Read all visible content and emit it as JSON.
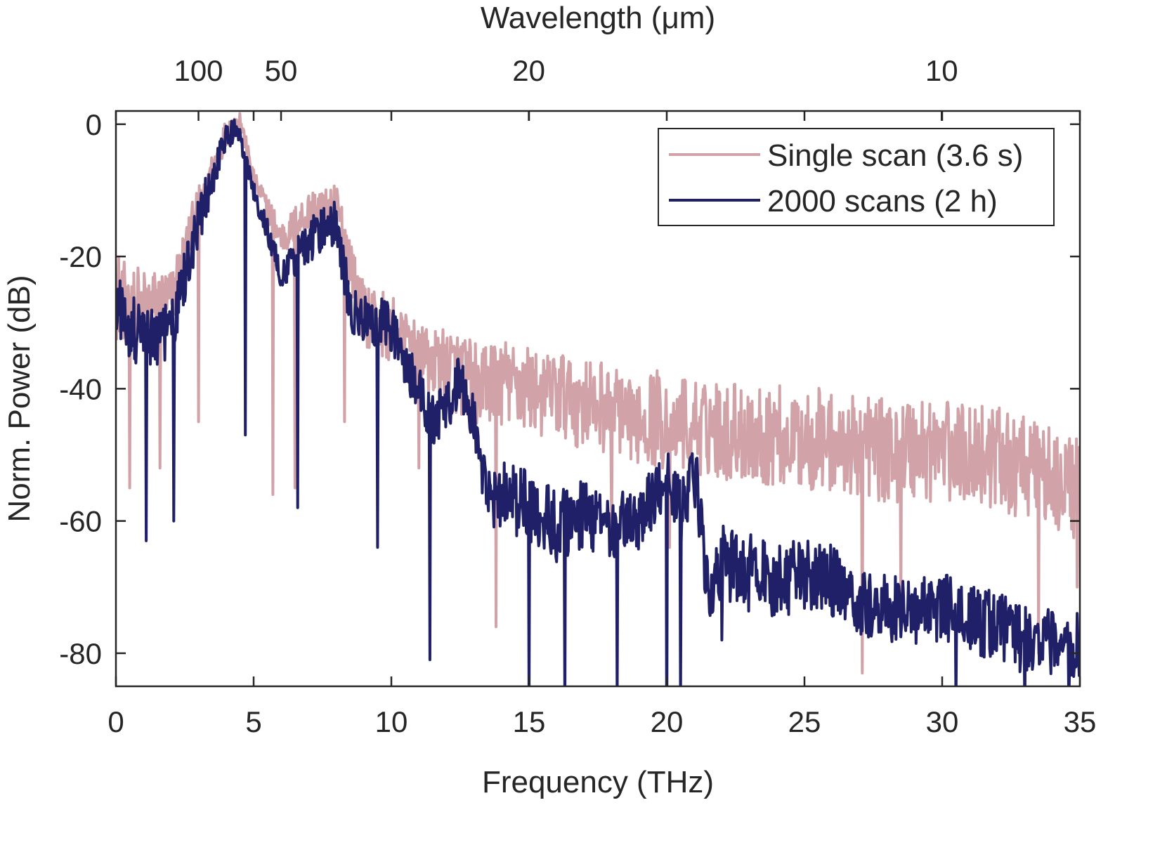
{
  "chart_data": {
    "type": "line",
    "xlabel": "Frequency (THz)",
    "ylabel": "Norm. Power (dB)",
    "top_xlabel": "Wavelength (μm)",
    "xlim": [
      0,
      35
    ],
    "ylim": [
      -85,
      2
    ],
    "x_ticks": [
      0,
      5,
      10,
      15,
      20,
      25,
      30,
      35
    ],
    "x_tick_labels": [
      "0",
      "5",
      "10",
      "15",
      "20",
      "25",
      "30",
      "35"
    ],
    "y_ticks": [
      0,
      -20,
      -40,
      -60,
      -80
    ],
    "y_tick_labels": [
      "0",
      "-20",
      "-40",
      "-60",
      "-80"
    ],
    "top_ticks": [
      {
        "label": "100",
        "frequency_thz": 2.998
      },
      {
        "label": "50",
        "frequency_thz": 5.996
      },
      {
        "label": "20",
        "frequency_thz": 14.99
      },
      {
        "label": "10",
        "frequency_thz": 29.98
      }
    ],
    "legend_position": "top-right",
    "grid": false,
    "series": [
      {
        "name": "Single scan (3.6 s)",
        "color": "#d1a3a8",
        "envelope": [
          [
            0,
            -25
          ],
          [
            1,
            -27
          ],
          [
            2,
            -26
          ],
          [
            3,
            -12
          ],
          [
            4,
            -1
          ],
          [
            4.5,
            1
          ],
          [
            5,
            -8
          ],
          [
            6,
            -17
          ],
          [
            7,
            -13
          ],
          [
            8,
            -12
          ],
          [
            9,
            -28
          ],
          [
            10,
            -30
          ],
          [
            11,
            -34
          ],
          [
            12,
            -36
          ],
          [
            13,
            -38
          ],
          [
            14,
            -38
          ],
          [
            16,
            -40
          ],
          [
            18,
            -42
          ],
          [
            20,
            -44
          ],
          [
            22,
            -45
          ],
          [
            24,
            -46
          ],
          [
            26,
            -47
          ],
          [
            28,
            -48
          ],
          [
            30,
            -48
          ],
          [
            32,
            -49
          ],
          [
            35,
            -54
          ]
        ],
        "noise_amplitude": [
          [
            0,
            10
          ],
          [
            3,
            5
          ],
          [
            4.5,
            2
          ],
          [
            7,
            5
          ],
          [
            10,
            8
          ],
          [
            14,
            10
          ],
          [
            20,
            11
          ],
          [
            28,
            12
          ],
          [
            35,
            12
          ]
        ],
        "dips": [
          [
            0.5,
            -55
          ],
          [
            1.6,
            -52
          ],
          [
            3.0,
            -45
          ],
          [
            5.7,
            -56
          ],
          [
            6.5,
            -55
          ],
          [
            8.3,
            -45
          ],
          [
            11.0,
            -52
          ],
          [
            13.8,
            -76
          ],
          [
            18.0,
            -62
          ],
          [
            20.1,
            -64
          ],
          [
            27.1,
            -83
          ],
          [
            28.5,
            -73
          ],
          [
            33.5,
            -80
          ],
          [
            34.9,
            -70
          ]
        ]
      },
      {
        "name": "2000 scans (2 h)",
        "color": "#1f2068",
        "envelope": [
          [
            0,
            -27
          ],
          [
            1,
            -32
          ],
          [
            2,
            -30
          ],
          [
            3,
            -14
          ],
          [
            4,
            -2
          ],
          [
            4.4,
            0
          ],
          [
            5,
            -10
          ],
          [
            6,
            -22
          ],
          [
            7,
            -17
          ],
          [
            8,
            -14
          ],
          [
            8.5,
            -27
          ],
          [
            9,
            -29
          ],
          [
            10,
            -30
          ],
          [
            10.5,
            -35
          ],
          [
            11.5,
            -44
          ],
          [
            12,
            -42
          ],
          [
            12.5,
            -38
          ],
          [
            13,
            -44
          ],
          [
            13.5,
            -56
          ],
          [
            14,
            -55
          ],
          [
            15,
            -57
          ],
          [
            16,
            -60
          ],
          [
            17,
            -58
          ],
          [
            18,
            -60
          ],
          [
            19,
            -59
          ],
          [
            20,
            -52
          ],
          [
            20.5,
            -58
          ],
          [
            21,
            -51
          ],
          [
            21.5,
            -70
          ],
          [
            22,
            -65
          ],
          [
            23,
            -67
          ],
          [
            24,
            -68
          ],
          [
            25,
            -67
          ],
          [
            26,
            -68
          ],
          [
            27,
            -71
          ],
          [
            28,
            -72
          ],
          [
            29,
            -73
          ],
          [
            30,
            -72
          ],
          [
            31,
            -74
          ],
          [
            32,
            -75
          ],
          [
            33,
            -77
          ],
          [
            35,
            -78
          ]
        ],
        "noise_amplitude": [
          [
            0,
            9
          ],
          [
            3,
            6
          ],
          [
            4.5,
            2
          ],
          [
            7,
            5
          ],
          [
            10,
            6
          ],
          [
            13,
            6
          ],
          [
            15,
            9
          ],
          [
            20,
            7
          ],
          [
            22,
            9
          ],
          [
            28,
            8
          ],
          [
            35,
            8
          ]
        ],
        "dips": [
          [
            1.1,
            -63
          ],
          [
            2.1,
            -60
          ],
          [
            4.7,
            -47
          ],
          [
            6.6,
            -58
          ],
          [
            9.5,
            -64
          ],
          [
            11.4,
            -81
          ],
          [
            15.0,
            -88
          ],
          [
            16.3,
            -90
          ],
          [
            18.2,
            -88
          ],
          [
            20.0,
            -95
          ],
          [
            20.5,
            -88
          ],
          [
            22.0,
            -78
          ],
          [
            30.5,
            -88
          ],
          [
            33.0,
            -90
          ],
          [
            34.6,
            -88
          ]
        ]
      }
    ]
  }
}
